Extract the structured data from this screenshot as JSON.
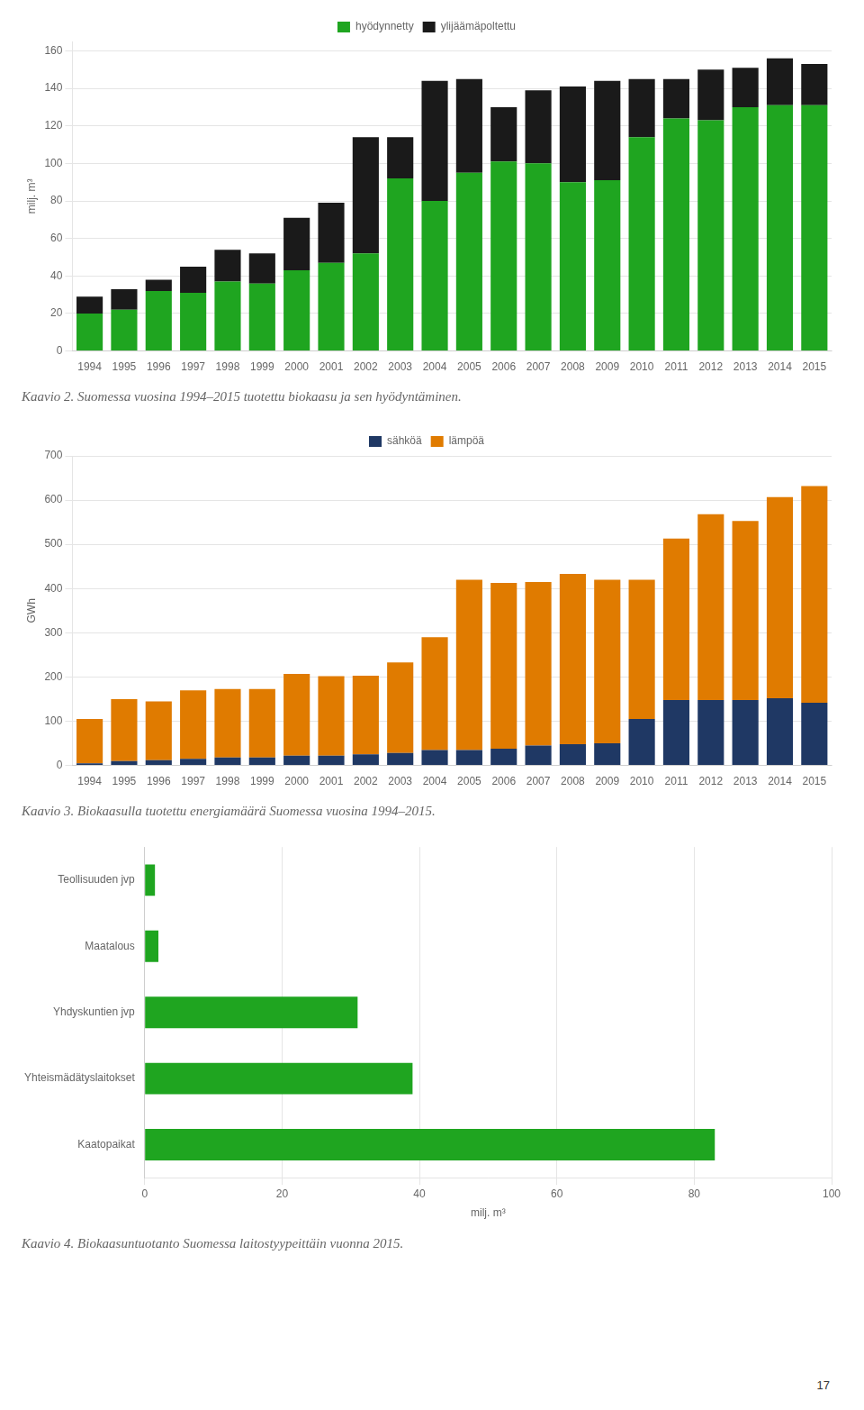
{
  "chart_data": [
    {
      "type": "bar",
      "title": "Kaavio 2. Suomessa vuosina 1994–2015 tuotettu biokaasu ja sen hyödyntäminen.",
      "categories": [
        1994,
        1995,
        1996,
        1997,
        1998,
        1999,
        2000,
        2001,
        2002,
        2003,
        2004,
        2005,
        2006,
        2007,
        2008,
        2009,
        2010,
        2011,
        2012,
        2013,
        2014,
        2015
      ],
      "series": [
        {
          "name": "hyödynnetty",
          "color": "#1fa520",
          "values": [
            20,
            22,
            32,
            31,
            37,
            36,
            43,
            47,
            52,
            92,
            80,
            95,
            101,
            100,
            90,
            91,
            114,
            124,
            123,
            130,
            131,
            131
          ]
        },
        {
          "name": "ylijäämäpoltettu",
          "color": "#1a1a1a",
          "values": [
            9,
            11,
            6,
            14,
            17,
            16,
            28,
            32,
            62,
            22,
            64,
            50,
            29,
            39,
            51,
            53,
            31,
            21,
            27,
            21,
            25,
            22
          ]
        }
      ],
      "stacked": true,
      "ylabel": "milj. m³",
      "ylim": [
        0,
        165
      ],
      "yticks": [
        0,
        20,
        40,
        60,
        80,
        100,
        120,
        140,
        160
      ],
      "grid": true,
      "legend": "top"
    },
    {
      "type": "bar",
      "title": "Kaavio 3. Biokaasulla tuotettu energiamäärä Suomessa vuosina 1994–2015.",
      "categories": [
        1994,
        1995,
        1996,
        1997,
        1998,
        1999,
        2000,
        2001,
        2002,
        2003,
        2004,
        2005,
        2006,
        2007,
        2008,
        2009,
        2010,
        2011,
        2012,
        2013,
        2014,
        2015
      ],
      "series": [
        {
          "name": "sähköä",
          "color": "#1f3864",
          "values": [
            5,
            10,
            12,
            15,
            18,
            18,
            22,
            22,
            25,
            28,
            35,
            35,
            38,
            45,
            48,
            50,
            105,
            148,
            148,
            148,
            152,
            142
          ]
        },
        {
          "name": "lämpöä",
          "color": "#e07b00",
          "values": [
            100,
            140,
            133,
            155,
            155,
            155,
            185,
            180,
            178,
            205,
            255,
            385,
            375,
            370,
            385,
            370,
            315,
            365,
            420,
            405,
            455,
            490
          ]
        }
      ],
      "stacked": true,
      "ylabel": "GWh",
      "ylim": [
        0,
        700
      ],
      "yticks": [
        0,
        100,
        200,
        300,
        400,
        500,
        600,
        700
      ],
      "grid": true,
      "legend": "top"
    },
    {
      "type": "bar",
      "orientation": "horizontal",
      "title": "Kaavio 4. Biokaasuntuotanto Suomessa laitostyypeittäin vuonna 2015.",
      "categories": [
        "Teollisuuden jvp",
        "Maatalous",
        "Yhdyskuntien jvp",
        "Yhteismädätyslaitokset",
        "Kaatopaikat"
      ],
      "values": [
        1.5,
        2.0,
        31,
        39,
        83
      ],
      "color": "#1fa520",
      "xlabel": "milj. m³",
      "xlim": [
        0,
        100
      ],
      "xticks": [
        0,
        20,
        40,
        60,
        80,
        100
      ],
      "grid": true
    }
  ],
  "annotations": [
    "17"
  ]
}
